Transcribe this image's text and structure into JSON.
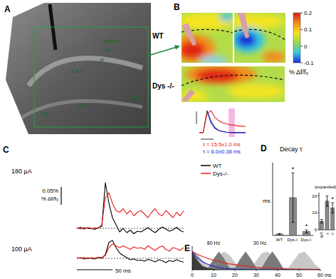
{
  "panel_labels": [
    "A",
    "B",
    "C",
    "D",
    "E"
  ],
  "image_a": {
    "annotations": [
      "oriens",
      "so",
      "sr",
      "CA1",
      "Sub",
      "slm",
      "DG"
    ]
  },
  "image_b": {
    "rows": [
      "WT",
      "Dys -/-"
    ],
    "colorbar": {
      "title": "% Δf/f₀",
      "range": [
        -0.1,
        0.2
      ],
      "ticks": [
        0.2,
        0.1,
        0,
        -0.1
      ]
    }
  },
  "chart_data": [
    {
      "type": "line",
      "title": "180 µA",
      "x": [
        0,
        5,
        10,
        15,
        20,
        25,
        30,
        35,
        40,
        45,
        50,
        55,
        60,
        65,
        70,
        75,
        80,
        85,
        90,
        95,
        100,
        105,
        110,
        115,
        120,
        125,
        130,
        135,
        140,
        145,
        150
      ],
      "xlim": [
        0,
        150
      ],
      "ylim": [
        -0.02,
        0.14
      ],
      "tick_labels": false,
      "baseline": 0,
      "legend": "right",
      "scale_bars": {
        "y": 0.05,
        "y_label": "0.05%",
        "y_unit_label": "% Δf/f₀"
      },
      "series": [
        {
          "name": "WT",
          "color": "#000000",
          "values": [
            0,
            0.003,
            -0.002,
            0.002,
            0,
            -0.003,
            0.002,
            0.005,
            0.128,
            0.07,
            0.03,
            0.01,
            -0.01,
            0,
            -0.012,
            -0.005,
            -0.015,
            -0.008,
            -0.01,
            -0.004,
            0.002,
            -0.006,
            -0.012,
            -0.003,
            0.004,
            -0.002,
            -0.008,
            -0.004,
            0.003,
            -0.006,
            -0.01
          ]
        },
        {
          "name": "Dys-/-",
          "color": "#e8201c",
          "values": [
            0.002,
            -0.002,
            0.003,
            0,
            -0.002,
            0.002,
            0,
            0.01,
            0.085,
            0.1,
            0.07,
            0.05,
            0.045,
            0.055,
            0.04,
            0.05,
            0.035,
            0.045,
            0.05,
            0.04,
            0.03,
            0.045,
            0.055,
            0.04,
            0.035,
            0.05,
            0.04,
            0.03,
            0.045,
            0.035,
            0.05
          ]
        }
      ]
    },
    {
      "type": "line",
      "title": "100 µA",
      "x": [
        0,
        5,
        10,
        15,
        20,
        25,
        30,
        35,
        40,
        45,
        50,
        55,
        60,
        65,
        70,
        75,
        80,
        85,
        90,
        95,
        100,
        105,
        110,
        115,
        120,
        125,
        130,
        135,
        140,
        145,
        150
      ],
      "xlim": [
        0,
        150
      ],
      "ylim": [
        -0.02,
        0.06
      ],
      "tick_labels": false,
      "baseline": 0,
      "scale_bars": {
        "x": 50,
        "x_label": "50 ms"
      },
      "series": [
        {
          "color": "#000000",
          "values": [
            0,
            0.002,
            -0.002,
            0.001,
            0,
            -0.002,
            0.002,
            0,
            0.01,
            0.045,
            0.05,
            0.03,
            0.015,
            0.008,
            0.002,
            -0.004,
            -0.002,
            -0.006,
            -0.005,
            -0.008,
            -0.003,
            -0.006,
            -0.01,
            -0.004,
            -0.007,
            -0.012,
            -0.006,
            -0.009,
            -0.004,
            -0.008,
            -0.011
          ]
        },
        {
          "color": "#e8201c",
          "values": [
            0.002,
            0,
            0.003,
            -0.001,
            0.002,
            0,
            0.003,
            0.002,
            0.008,
            0.03,
            0.04,
            0.035,
            0.03,
            0.035,
            0.03,
            0.025,
            0.032,
            0.028,
            0.03,
            0.025,
            0.035,
            0.028,
            0.022,
            0.03,
            0.035,
            0.025,
            0.02,
            0.03,
            0.027,
            0.022,
            0.03
          ]
        }
      ]
    },
    {
      "type": "line",
      "x": [
        0,
        5,
        10,
        15,
        20,
        25,
        30,
        35,
        40,
        45,
        50,
        55,
        60
      ],
      "xlim": [
        0,
        60
      ],
      "ylim": [
        -0.2,
        1.1
      ],
      "tick_labels": false,
      "highlight": [
        38,
        46
      ],
      "annotations": [
        {
          "text": "τ = 15.5±1.0 ms",
          "color": "#e8201c"
        },
        {
          "text": "τ = 6.0±0.38 ms",
          "color": "#1a1adc"
        }
      ],
      "series": [
        {
          "color": "#555555",
          "values": [
            0,
            0,
            1,
            0.55,
            0.25,
            0.1,
            0.05,
            0.02,
            0,
            0,
            0,
            0,
            0
          ]
        },
        {
          "color": "#e8201c",
          "values": [
            0,
            0,
            0.85,
            1,
            0.7,
            0.55,
            0.45,
            0.4,
            0.35,
            0.35,
            0.3,
            0.3,
            0.28
          ]
        },
        {
          "color": "#1a1adc",
          "values": [
            null,
            null,
            1,
            0.45,
            0.2,
            0.1,
            0.05,
            0.02,
            0.01,
            0,
            0,
            0,
            0
          ]
        }
      ]
    },
    {
      "type": "bar",
      "title": "Decay τ",
      "y_label": "ms",
      "categories": [
        "WT",
        "Dys-/-",
        "Dys-/-"
      ],
      "values": [
        5,
        130,
        14
      ],
      "errors": [
        2,
        85,
        5
      ],
      "significance": [
        null,
        "*",
        "*"
      ],
      "color": "#8a8a8a",
      "ylim": [
        0,
        250
      ],
      "tick_labels": "x"
    },
    {
      "type": "bar",
      "title": "(expanded)",
      "categories": [
        "WT",
        "-/-",
        "-/-"
      ],
      "values": [
        5,
        17,
        13
      ],
      "errors": [
        1,
        3,
        3
      ],
      "significance": [
        null,
        null,
        "*"
      ],
      "color": "#8a8a8a",
      "ylim": [
        0,
        22
      ],
      "yticks": [
        0,
        10,
        20
      ]
    },
    {
      "type": "line",
      "x_label": "ms",
      "x": [
        0,
        2.5,
        5,
        7.5,
        10,
        12.5,
        15,
        17.5,
        20,
        22.5,
        25,
        27.5,
        30,
        32.5,
        35,
        37.5,
        40,
        42.5,
        45,
        47.5,
        50,
        52.5,
        55,
        57.5,
        60
      ],
      "xlim": [
        0,
        60
      ],
      "xticks": [
        0,
        10,
        20,
        30,
        40,
        50,
        60
      ],
      "ylim": [
        0,
        1.3
      ],
      "tick_labels": "x",
      "series": [
        {
          "name": "30 Hz",
          "type": "area",
          "color": "#c8c8c8",
          "values": [
            1,
            0.85,
            0.5,
            0.2,
            0.4,
            0.8,
            1,
            0.8,
            0.4,
            0.1,
            0,
            0.1,
            0.5,
            0.9,
            1,
            0.8,
            0.4,
            0.1,
            0.1,
            0.5,
            0.9,
            1,
            0.7,
            0.3,
            0.05
          ]
        },
        {
          "name": "80 Hz",
          "type": "area",
          "color": "#7a7a7a",
          "values": [
            1,
            0.6,
            0.1,
            0.1,
            0.6,
            1,
            0.6,
            0.1,
            0.1,
            0.6,
            1,
            0.6,
            0.1,
            0.1,
            0.6,
            1,
            0.6,
            0.1,
            0,
            0,
            0,
            0,
            0,
            0,
            0
          ]
        },
        {
          "type": "area",
          "color": "#3c3c3c",
          "values": [
            1,
            0.45,
            0.2,
            0.09,
            0.04,
            0.02,
            0.01,
            0,
            0,
            0,
            0,
            0,
            0,
            0,
            0,
            0,
            0,
            0,
            0,
            0,
            0,
            0,
            0,
            0,
            0
          ]
        },
        {
          "type": "line",
          "color": "#1a1adc",
          "values": [
            1,
            0.66,
            0.43,
            0.29,
            0.19,
            0.12,
            0.08,
            0.05,
            0.03,
            0.02,
            0.01,
            0.01,
            0,
            0,
            0,
            0,
            0,
            0,
            0,
            0,
            0,
            0,
            0,
            0,
            0
          ]
        },
        {
          "type": "line",
          "color": "#e8201c",
          "values": [
            1,
            0.85,
            0.72,
            0.62,
            0.52,
            0.45,
            0.38,
            0.32,
            0.28,
            0.23,
            0.2,
            0.17,
            0.14,
            0.12,
            0.1,
            0.09,
            0.08,
            0.06,
            0.05,
            0.04,
            0.04,
            0.03,
            0.03,
            0.02,
            0.02
          ]
        }
      ]
    }
  ]
}
